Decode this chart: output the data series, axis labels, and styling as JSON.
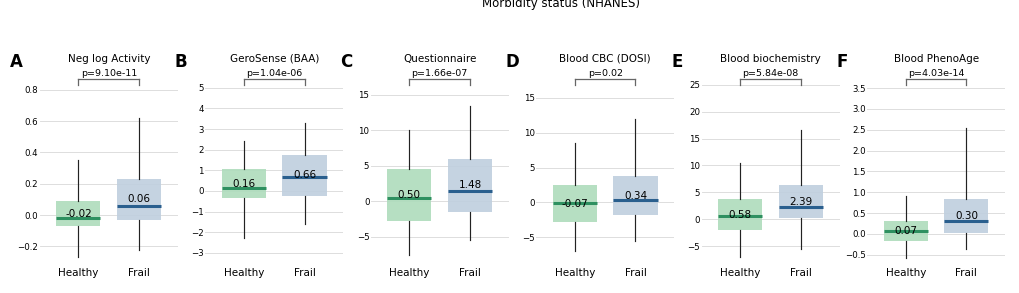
{
  "title": "Morbidity status (NHANES)",
  "panels": [
    {
      "label": "A",
      "title": "Neg log Activity",
      "pvalue": "p=9.10e-11",
      "healthy": {
        "median": -0.02,
        "median_label": "-0.02",
        "q1": -0.07,
        "q3": 0.09,
        "whisker_low": -0.27,
        "whisker_high": 0.35
      },
      "frail": {
        "median": 0.06,
        "median_label": "0.06",
        "q1": -0.03,
        "q3": 0.23,
        "whisker_low": -0.22,
        "whisker_high": 0.62
      },
      "yticks": [
        -0.2,
        0.0,
        0.2,
        0.4,
        0.6,
        0.8
      ],
      "ylim": [
        -0.32,
        0.97
      ]
    },
    {
      "label": "B",
      "title": "GeroSense (BAA)",
      "pvalue": "p=1.04e-06",
      "healthy": {
        "median": 0.16,
        "median_label": "0.16",
        "q1": -0.35,
        "q3": 1.05,
        "whisker_low": -2.3,
        "whisker_high": 2.4
      },
      "frail": {
        "median": 0.66,
        "median_label": "0.66",
        "q1": -0.25,
        "q3": 1.75,
        "whisker_low": -1.6,
        "whisker_high": 3.3
      },
      "yticks": [
        -3,
        -2,
        -1,
        0,
        1,
        2,
        3,
        4,
        5
      ],
      "ylim": [
        -3.6,
        6.2
      ]
    },
    {
      "label": "C",
      "title": "Questionnaire",
      "pvalue": "p=1.66e-07",
      "healthy": {
        "median": 0.5,
        "median_label": "0.50",
        "q1": -2.8,
        "q3": 4.5,
        "whisker_low": -7.5,
        "whisker_high": 10.0
      },
      "frail": {
        "median": 1.48,
        "median_label": "1.48",
        "q1": -1.5,
        "q3": 6.0,
        "whisker_low": -5.5,
        "whisker_high": 13.5
      },
      "yticks": [
        -5,
        0,
        5,
        10,
        15
      ],
      "ylim": [
        -9.0,
        19.5
      ]
    },
    {
      "label": "D",
      "title": "Blood CBC (DOSI)",
      "pvalue": "p=0.02",
      "healthy": {
        "median": -0.07,
        "median_label": "-0.07",
        "q1": -2.8,
        "q3": 2.5,
        "whisker_low": -7.0,
        "whisker_high": 8.5
      },
      "frail": {
        "median": 0.34,
        "median_label": "0.34",
        "q1": -1.8,
        "q3": 3.8,
        "whisker_low": -5.5,
        "whisker_high": 12.0
      },
      "yticks": [
        -5,
        0,
        5,
        10,
        15
      ],
      "ylim": [
        -9.0,
        20.0
      ]
    },
    {
      "label": "E",
      "title": "Blood biochemistry",
      "pvalue": "p=5.84e-08",
      "healthy": {
        "median": 0.58,
        "median_label": "0.58",
        "q1": -2.0,
        "q3": 3.8,
        "whisker_low": -7.0,
        "whisker_high": 10.5
      },
      "frail": {
        "median": 2.39,
        "median_label": "2.39",
        "q1": 0.3,
        "q3": 6.3,
        "whisker_low": -5.5,
        "whisker_high": 16.5
      },
      "yticks": [
        -5,
        0,
        5,
        10,
        15,
        20,
        25
      ],
      "ylim": [
        -8.5,
        29.0
      ]
    },
    {
      "label": "F",
      "title": "Blood PhenoAge",
      "pvalue": "p=4.03e-14",
      "healthy": {
        "median": 0.07,
        "median_label": "0.07",
        "q1": -0.18,
        "q3": 0.32,
        "whisker_low": -0.58,
        "whisker_high": 0.9
      },
      "frail": {
        "median": 0.3,
        "median_label": "0.30",
        "q1": 0.02,
        "q3": 0.85,
        "whisker_low": -0.35,
        "whisker_high": 2.55
      },
      "yticks": [
        -0.5,
        0.0,
        0.5,
        1.0,
        1.5,
        2.0,
        2.5,
        3.0,
        3.5
      ],
      "ylim": [
        -0.75,
        4.1
      ]
    }
  ],
  "healthy_box_color": "#aedcbc",
  "healthy_median_color": "#2e9060",
  "frail_box_color": "#bfcfde",
  "frail_median_color": "#2a5f8e",
  "whisker_color": "#222222",
  "background_color": "#ffffff",
  "grid_color": "#d8d8d8",
  "bracket_color": "#666666",
  "median_label_fontsize": 7.5,
  "title_fontsize": 7.5,
  "label_fontsize": 12,
  "pvalue_fontsize": 6.8,
  "tick_fontsize": 6.2,
  "xlabel_fontsize": 7.5
}
